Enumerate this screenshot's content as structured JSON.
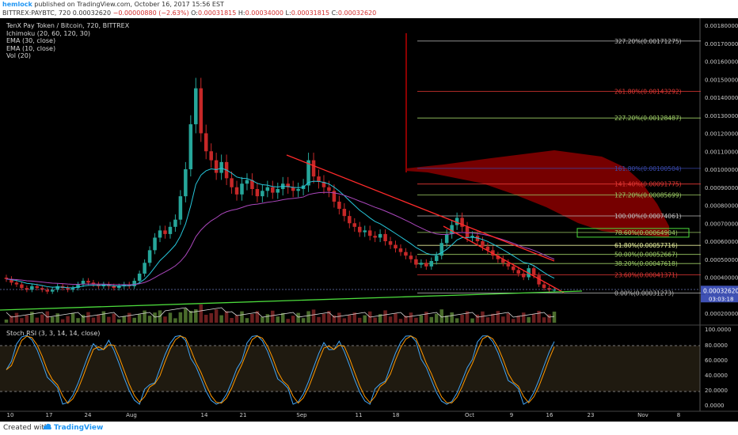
{
  "header": {
    "user": "hemlock",
    "published": " published on TradingView.com, October 16, 2017 15:56 EST",
    "symbol_line": "BITTREX:PAYBTC, 720",
    "price": "0.00032620",
    "change": "−0.00000880 (−2.63%)",
    "o_label": "O:",
    "o": "0.00031815",
    "h_label": "H:",
    "h": "0.00034000",
    "l_label": "L:",
    "l": "0.00031815",
    "c_label": "C:",
    "c": "0.00032620"
  },
  "legend": {
    "title": "TenX Pay Token / Bitcoin, 720, BITTREX",
    "items": [
      "Ichimoku (20, 60, 120, 30)",
      "EMA (30, close)",
      "EMA (10, close)",
      "Vol (20)"
    ]
  },
  "stoch_label": "Stoch RSI (3, 3, 14, 14, close)",
  "footer": {
    "created": "Created with",
    "brand": "TradingView"
  },
  "colors": {
    "up": "#26a69a",
    "down": "#c62828",
    "ema10": "#26c6da",
    "ema30": "#ab47bc",
    "cloud": "#8b0000",
    "trend_red": "#ff2a2a",
    "trend_green": "#4cdc3c"
  },
  "chart_data": {
    "type": "candlestick",
    "y_axis_ticks": [
      "0.00180000",
      "0.00170000",
      "0.00160000",
      "0.00150000",
      "0.00140000",
      "0.00130000",
      "0.00120000",
      "0.00110000",
      "0.00100000",
      "0.00090000",
      "0.00080000",
      "0.00070000",
      "0.00060000",
      "0.00050000",
      "0.00040000",
      "0.00030000",
      "0.00020000"
    ],
    "ylim": [
      0.00017,
      0.00184
    ],
    "x_axis_ticks": [
      "10",
      "17",
      "24",
      "Aug",
      "14",
      "21",
      "Sep",
      "11",
      "18",
      "Sep",
      "Oct",
      "9",
      "16",
      "23",
      "Nov",
      "8"
    ],
    "x_ticks_shown": [
      "10",
      "17",
      "24",
      "Aug",
      "14",
      "21",
      "Sep",
      "11",
      "18",
      "Oct",
      "9",
      "16",
      "23",
      "Nov",
      "8"
    ],
    "current_price_label": "0.00032620",
    "countdown_label": "03:03:18",
    "fib_levels": [
      {
        "label": "327.20%(0.00171275)",
        "value": 0.00171275,
        "color": "#bdbdbd"
      },
      {
        "label": "261.80%(0.00143292)",
        "value": 0.00143292,
        "color": "#e53935"
      },
      {
        "label": "227.20%(0.00128487)",
        "value": 0.00128487,
        "color": "#9ccc65"
      },
      {
        "label": "161.80%(0.00100504)",
        "value": 0.00100504,
        "color": "#3949ab"
      },
      {
        "label": "141.40%(0.00091775)",
        "value": 0.00091775,
        "color": "#e53935"
      },
      {
        "label": "127.20%(0.00085699)",
        "value": 0.00085699,
        "color": "#9ccc65"
      },
      {
        "label": "100.00%(0.00074061)",
        "value": 0.00074061,
        "color": "#bdbdbd"
      },
      {
        "label": "78.60%(0.00064904)",
        "value": 0.00064904,
        "color": "#9ccc65"
      },
      {
        "label": "61.80%(0.00057716)",
        "value": 0.00057716,
        "color": "#e6ee9c"
      },
      {
        "label": "50.00%(0.00052667)",
        "value": 0.00052667,
        "color": "#9ccc65"
      },
      {
        "label": "38.20%(0.00047618)",
        "value": 0.00047618,
        "color": "#9ccc65"
      },
      {
        "label": "23.60%(0.00041371)",
        "value": 0.00041371,
        "color": "#e53935"
      },
      {
        "label": "0.00%(0.00031273)",
        "value": 0.00031273,
        "color": "#bdbdbd"
      }
    ],
    "fib_highlight": "78.60%(0.00064904)",
    "closes": [
      0.00039,
      0.00037,
      0.00036,
      0.00034,
      0.00033,
      0.00035,
      0.00034,
      0.00033,
      0.00032,
      0.00033,
      0.00035,
      0.00034,
      0.00033,
      0.00034,
      0.00036,
      0.00038,
      0.00037,
      0.00036,
      0.00035,
      0.00036,
      0.00035,
      0.00034,
      0.00035,
      0.00036,
      0.00035,
      0.00038,
      0.00042,
      0.00048,
      0.00055,
      0.00062,
      0.00066,
      0.00064,
      0.00068,
      0.00072,
      0.00085,
      0.001,
      0.00125,
      0.00145,
      0.0012,
      0.0011,
      0.00105,
      0.00098,
      0.00104,
      0.00095,
      0.0009,
      0.00086,
      0.00092,
      0.00094,
      0.00089,
      0.00085,
      0.00088,
      0.0009,
      0.00087,
      0.00089,
      0.00092,
      0.0009,
      0.00088,
      0.00089,
      0.00091,
      0.00105,
      0.00096,
      0.00093,
      0.0009,
      0.00088,
      0.00082,
      0.00078,
      0.00074,
      0.0007,
      0.00068,
      0.00065,
      0.00066,
      0.00063,
      0.00062,
      0.00064,
      0.0006,
      0.00058,
      0.00056,
      0.00054,
      0.00052,
      0.0005,
      0.00047,
      0.00048,
      0.00046,
      0.00049,
      0.00052,
      0.00059,
      0.00064,
      0.00069,
      0.00073,
      0.00068,
      0.00062,
      0.00063,
      0.0006,
      0.00057,
      0.00055,
      0.00052,
      0.0005,
      0.00048,
      0.00046,
      0.00044,
      0.00042,
      0.0004,
      0.00045,
      0.00041,
      0.00036,
      0.00034,
      0.00033,
      0.00033
    ]
  }
}
